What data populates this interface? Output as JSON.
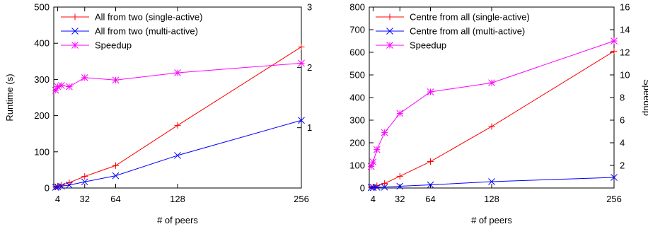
{
  "chart_data": [
    {
      "type": "line",
      "xlabel": "# of peers",
      "ylabel": "Runtime (s)",
      "y2label": "",
      "xlim": [
        0,
        256
      ],
      "ylim": [
        0,
        500
      ],
      "y2lim": [
        0,
        3
      ],
      "x_ticks": [
        4,
        32,
        64,
        128,
        256
      ],
      "y_ticks": [
        0,
        100,
        200,
        300,
        400,
        500
      ],
      "y2_ticks": [
        1,
        2,
        3
      ],
      "grid": false,
      "legend_position": "top-left",
      "series": [
        {
          "name": "All from two (single-active)",
          "axis": "y",
          "color": "#ff0000",
          "marker": "plus",
          "x": [
            2,
            4,
            8,
            16,
            32,
            64,
            128,
            256
          ],
          "values": [
            3,
            5,
            8,
            15,
            32,
            62,
            173,
            390
          ]
        },
        {
          "name": "All from two (multi-active)",
          "axis": "y",
          "color": "#0000ff",
          "marker": "cross",
          "x": [
            2,
            4,
            8,
            16,
            32,
            64,
            128,
            256
          ],
          "values": [
            2,
            3,
            5,
            8,
            17,
            34,
            90,
            187
          ]
        },
        {
          "name": "Speedup",
          "axis": "y2",
          "color": "#ff00ff",
          "marker": "star",
          "x": [
            2,
            4,
            8,
            16,
            32,
            64,
            128,
            256
          ],
          "values": [
            1.62,
            1.68,
            1.7,
            1.68,
            1.83,
            1.79,
            1.91,
            2.07
          ]
        }
      ]
    },
    {
      "type": "line",
      "xlabel": "# of peers",
      "ylabel": "",
      "y2label": "Speedup",
      "xlim": [
        0,
        256
      ],
      "ylim": [
        0,
        800
      ],
      "y2lim": [
        0,
        16
      ],
      "x_ticks": [
        4,
        32,
        64,
        128,
        256
      ],
      "y_ticks": [
        0,
        100,
        200,
        300,
        400,
        500,
        600,
        700,
        800
      ],
      "y2_ticks": [
        2,
        4,
        6,
        8,
        10,
        12,
        14,
        16
      ],
      "grid": false,
      "legend_position": "top-left",
      "series": [
        {
          "name": "Centre from all (single-active)",
          "axis": "y",
          "color": "#ff0000",
          "marker": "plus",
          "x": [
            2,
            4,
            8,
            16,
            32,
            64,
            128,
            256
          ],
          "values": [
            3,
            5,
            10,
            20,
            52,
            117,
            272,
            605
          ]
        },
        {
          "name": "Centre from all (multi-active)",
          "axis": "y",
          "color": "#0000ff",
          "marker": "cross",
          "x": [
            2,
            4,
            8,
            16,
            32,
            64,
            128,
            256
          ],
          "values": [
            2,
            2,
            3,
            4,
            8,
            14,
            28,
            47
          ]
        },
        {
          "name": "Speedup",
          "axis": "y2",
          "color": "#ff00ff",
          "marker": "star",
          "x": [
            2,
            4,
            8,
            16,
            32,
            64,
            128,
            256
          ],
          "values": [
            1.9,
            2.3,
            3.4,
            4.9,
            6.6,
            8.5,
            9.3,
            13
          ]
        }
      ]
    }
  ]
}
